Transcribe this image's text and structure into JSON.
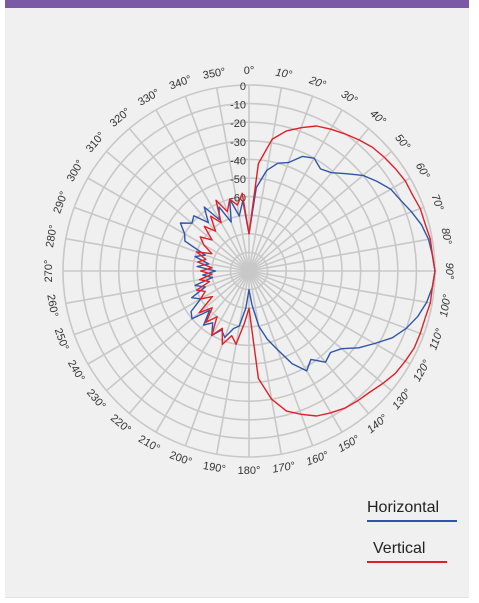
{
  "chart_data": {
    "type": "polar-line",
    "theta_labels": [
      "0°",
      "10°",
      "20°",
      "30°",
      "40°",
      "50°",
      "60°",
      "70°",
      "80°",
      "90°",
      "100°",
      "110°",
      "120°",
      "130°",
      "140°",
      "150°",
      "160°",
      "170°",
      "180°",
      "190°",
      "200°",
      "210°",
      "220°",
      "230°",
      "240°",
      "250°",
      "260°",
      "270°",
      "280°",
      "290°",
      "300°",
      "310°",
      "320°",
      "330°",
      "340°",
      "350°"
    ],
    "r_labels": [
      "0",
      "-10",
      "-20",
      "-30",
      "-40",
      "-50",
      "-60"
    ],
    "rlim": [
      -100,
      0
    ],
    "grid": true,
    "legend_position": "bottom-right",
    "series": [
      {
        "name": "Horizontal",
        "color": "#2f55a8",
        "points": [
          [
            0,
            -80
          ],
          [
            5,
            -55
          ],
          [
            10,
            -45
          ],
          [
            15,
            -40
          ],
          [
            20,
            -38
          ],
          [
            25,
            -32
          ],
          [
            30,
            -30
          ],
          [
            35,
            -33
          ],
          [
            40,
            -31
          ],
          [
            45,
            -26
          ],
          [
            50,
            -20
          ],
          [
            55,
            -16
          ],
          [
            60,
            -12
          ],
          [
            65,
            -10
          ],
          [
            70,
            -7
          ],
          [
            75,
            -4
          ],
          [
            80,
            -2
          ],
          [
            85,
            -1
          ],
          [
            90,
            0
          ],
          [
            95,
            -1
          ],
          [
            100,
            -3
          ],
          [
            105,
            -6
          ],
          [
            110,
            -10
          ],
          [
            115,
            -15
          ],
          [
            120,
            -22
          ],
          [
            125,
            -28
          ],
          [
            130,
            -35
          ],
          [
            135,
            -38
          ],
          [
            140,
            -36
          ],
          [
            145,
            -42
          ],
          [
            150,
            -38
          ],
          [
            155,
            -45
          ],
          [
            160,
            -55
          ],
          [
            165,
            -62
          ],
          [
            170,
            -70
          ],
          [
            175,
            -82
          ],
          [
            180,
            -90
          ],
          [
            185,
            -80
          ],
          [
            190,
            -70
          ],
          [
            195,
            -68
          ],
          [
            200,
            -62
          ],
          [
            205,
            -65
          ],
          [
            210,
            -60
          ],
          [
            215,
            -66
          ],
          [
            220,
            -62
          ],
          [
            225,
            -70
          ],
          [
            230,
            -60
          ],
          [
            235,
            -62
          ],
          [
            240,
            -70
          ],
          [
            245,
            -66
          ],
          [
            250,
            -75
          ],
          [
            255,
            -70
          ],
          [
            260,
            -80
          ],
          [
            265,
            -75
          ],
          [
            270,
            -82
          ],
          [
            275,
            -72
          ],
          [
            280,
            -78
          ],
          [
            285,
            -70
          ],
          [
            290,
            -75
          ],
          [
            295,
            -62
          ],
          [
            300,
            -60
          ],
          [
            305,
            -55
          ],
          [
            310,
            -60
          ],
          [
            315,
            -58
          ],
          [
            320,
            -66
          ],
          [
            325,
            -58
          ],
          [
            330,
            -68
          ],
          [
            335,
            -62
          ],
          [
            340,
            -72
          ],
          [
            345,
            -60
          ],
          [
            350,
            -70
          ],
          [
            355,
            -62
          ]
        ]
      },
      {
        "name": "Vertical",
        "color": "#e21f26",
        "points": [
          [
            0,
            -80
          ],
          [
            5,
            -42
          ],
          [
            10,
            -28
          ],
          [
            15,
            -22
          ],
          [
            20,
            -18
          ],
          [
            25,
            -14
          ],
          [
            30,
            -12
          ],
          [
            35,
            -10
          ],
          [
            40,
            -8
          ],
          [
            45,
            -6
          ],
          [
            50,
            -5
          ],
          [
            55,
            -4
          ],
          [
            60,
            -3
          ],
          [
            65,
            -3
          ],
          [
            70,
            -2
          ],
          [
            75,
            -2
          ],
          [
            80,
            -1
          ],
          [
            85,
            -1
          ],
          [
            90,
            0
          ],
          [
            95,
            -1
          ],
          [
            100,
            -1
          ],
          [
            105,
            -2
          ],
          [
            110,
            -2
          ],
          [
            115,
            -2
          ],
          [
            120,
            -3
          ],
          [
            125,
            -4
          ],
          [
            130,
            -6
          ],
          [
            135,
            -8
          ],
          [
            140,
            -9
          ],
          [
            145,
            -10
          ],
          [
            150,
            -12
          ],
          [
            155,
            -14
          ],
          [
            160,
            -18
          ],
          [
            165,
            -22
          ],
          [
            170,
            -30
          ],
          [
            175,
            -42
          ],
          [
            180,
            -80
          ],
          [
            185,
            -72
          ],
          [
            190,
            -60
          ],
          [
            195,
            -64
          ],
          [
            200,
            -58
          ],
          [
            205,
            -66
          ],
          [
            210,
            -60
          ],
          [
            215,
            -70
          ],
          [
            220,
            -64
          ],
          [
            225,
            -72
          ],
          [
            230,
            -65
          ],
          [
            235,
            -76
          ],
          [
            240,
            -70
          ],
          [
            245,
            -74
          ],
          [
            250,
            -70
          ],
          [
            255,
            -78
          ],
          [
            260,
            -73
          ],
          [
            265,
            -80
          ],
          [
            270,
            -74
          ],
          [
            275,
            -80
          ],
          [
            280,
            -72
          ],
          [
            285,
            -76
          ],
          [
            290,
            -70
          ],
          [
            295,
            -78
          ],
          [
            300,
            -72
          ],
          [
            305,
            -68
          ],
          [
            310,
            -74
          ],
          [
            315,
            -66
          ],
          [
            320,
            -72
          ],
          [
            325,
            -64
          ],
          [
            330,
            -70
          ],
          [
            335,
            -58
          ],
          [
            340,
            -66
          ],
          [
            345,
            -60
          ],
          [
            350,
            -64
          ],
          [
            355,
            -58
          ]
        ]
      }
    ]
  }
}
